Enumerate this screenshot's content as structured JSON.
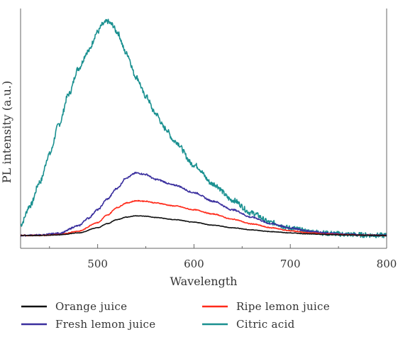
{
  "chart_data": {
    "type": "line",
    "xlabel": "Wavelength",
    "ylabel": "PL intensity (a.u.)",
    "xlim": [
      420,
      800
    ],
    "ylim": [
      -0.06,
      1.06
    ],
    "x_ticks": [
      500,
      600,
      700,
      800
    ],
    "y_ticks_shown": false,
    "grid": false,
    "legend_position": "bottom",
    "series": [
      {
        "name": "Orange juice",
        "color": "#111111",
        "x": [
          420,
          440,
          460,
          480,
          500,
          510,
          520,
          530,
          540,
          550,
          560,
          580,
          600,
          620,
          640,
          660,
          680,
          700,
          720,
          740,
          760,
          780,
          800
        ],
        "y": [
          0.0,
          0.0,
          0.003,
          0.012,
          0.036,
          0.055,
          0.074,
          0.086,
          0.092,
          0.09,
          0.084,
          0.074,
          0.062,
          0.048,
          0.036,
          0.026,
          0.018,
          0.012,
          0.007,
          0.004,
          0.002,
          0.001,
          0.0
        ]
      },
      {
        "name": "Fresh lemon juice",
        "color": "#3a2f9e",
        "x": [
          420,
          440,
          460,
          480,
          490,
          500,
          510,
          520,
          530,
          540,
          550,
          560,
          580,
          600,
          620,
          640,
          660,
          680,
          700,
          720,
          740,
          760,
          780,
          800
        ],
        "y": [
          0.0,
          0.002,
          0.01,
          0.045,
          0.08,
          0.12,
          0.17,
          0.22,
          0.27,
          0.292,
          0.285,
          0.262,
          0.235,
          0.2,
          0.16,
          0.12,
          0.085,
          0.055,
          0.035,
          0.02,
          0.01,
          0.005,
          0.002,
          0.0
        ]
      },
      {
        "name": "Ripe lemon juice",
        "color": "#ff2a1a",
        "x": [
          420,
          440,
          460,
          480,
          500,
          510,
          520,
          530,
          540,
          550,
          560,
          580,
          600,
          620,
          640,
          660,
          680,
          700,
          720,
          740,
          760,
          780,
          800
        ],
        "y": [
          0.0,
          0.0,
          0.004,
          0.02,
          0.06,
          0.095,
          0.13,
          0.152,
          0.162,
          0.16,
          0.152,
          0.138,
          0.12,
          0.1,
          0.076,
          0.054,
          0.036,
          0.022,
          0.012,
          0.006,
          0.003,
          0.001,
          0.0
        ]
      },
      {
        "name": "Citric acid",
        "color": "#1a9090",
        "x": [
          420,
          430,
          440,
          450,
          460,
          470,
          480,
          490,
          500,
          505,
          510,
          515,
          520,
          530,
          540,
          550,
          560,
          570,
          580,
          600,
          620,
          640,
          660,
          680,
          700,
          720,
          740,
          760,
          780,
          800
        ],
        "y": [
          0.05,
          0.14,
          0.25,
          0.38,
          0.52,
          0.66,
          0.78,
          0.86,
          0.95,
          0.985,
          1.0,
          0.985,
          0.95,
          0.85,
          0.74,
          0.65,
          0.57,
          0.5,
          0.44,
          0.33,
          0.24,
          0.165,
          0.105,
          0.06,
          0.035,
          0.018,
          0.01,
          0.005,
          0.002,
          0.0
        ]
      }
    ]
  }
}
